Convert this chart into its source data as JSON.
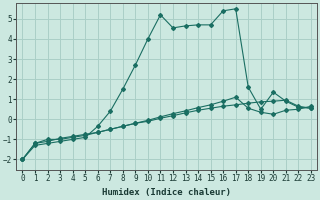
{
  "xlabel": "Humidex (Indice chaleur)",
  "ylabel": "",
  "xlim": [
    -0.5,
    23.5
  ],
  "ylim": [
    -2.5,
    5.8
  ],
  "yticks": [
    -2,
    -1,
    0,
    1,
    2,
    3,
    4,
    5
  ],
  "xticks": [
    0,
    1,
    2,
    3,
    4,
    5,
    6,
    7,
    8,
    9,
    10,
    11,
    12,
    13,
    14,
    15,
    16,
    17,
    18,
    19,
    20,
    21,
    22,
    23
  ],
  "bg_color": "#cce8e0",
  "grid_color": "#aacfc7",
  "line_color": "#1a6e62",
  "line1_x": [
    0,
    1,
    2,
    3,
    4,
    5,
    6,
    7,
    8,
    9,
    10,
    11,
    12,
    13,
    14,
    15,
    16,
    17,
    18,
    19,
    20,
    21,
    22,
    23
  ],
  "line1_y": [
    -2.0,
    -1.2,
    -1.1,
    -0.95,
    -0.85,
    -0.75,
    -0.65,
    -0.5,
    -0.35,
    -0.2,
    -0.1,
    0.05,
    0.18,
    0.32,
    0.45,
    0.55,
    0.65,
    0.72,
    0.8,
    0.87,
    0.9,
    0.95,
    0.65,
    0.55
  ],
  "line2_x": [
    0,
    1,
    2,
    3,
    4,
    5,
    6,
    7,
    8,
    9,
    10,
    11,
    12,
    13,
    14,
    15,
    16,
    17,
    18,
    19,
    20,
    21,
    22,
    23
  ],
  "line2_y": [
    -2.0,
    -1.2,
    -1.0,
    -1.0,
    -0.9,
    -0.8,
    -0.65,
    -0.5,
    -0.35,
    -0.2,
    -0.05,
    0.12,
    0.28,
    0.42,
    0.58,
    0.72,
    0.9,
    1.1,
    0.55,
    0.35,
    0.25,
    0.45,
    0.5,
    0.65
  ],
  "line3_x": [
    0,
    1,
    2,
    3,
    4,
    5,
    6,
    7,
    8,
    9,
    10,
    11,
    12,
    13,
    14,
    15,
    16,
    17,
    18,
    19,
    20,
    21,
    22,
    23
  ],
  "line3_y": [
    -2.0,
    -1.3,
    -1.2,
    -1.1,
    -1.0,
    -0.9,
    -0.35,
    0.4,
    1.5,
    2.7,
    4.0,
    5.2,
    4.55,
    4.65,
    4.7,
    4.7,
    5.4,
    5.5,
    1.6,
    0.5,
    1.35,
    0.9,
    0.6,
    0.55
  ],
  "marker": "D",
  "markersize": 2.0,
  "linewidth": 0.8
}
